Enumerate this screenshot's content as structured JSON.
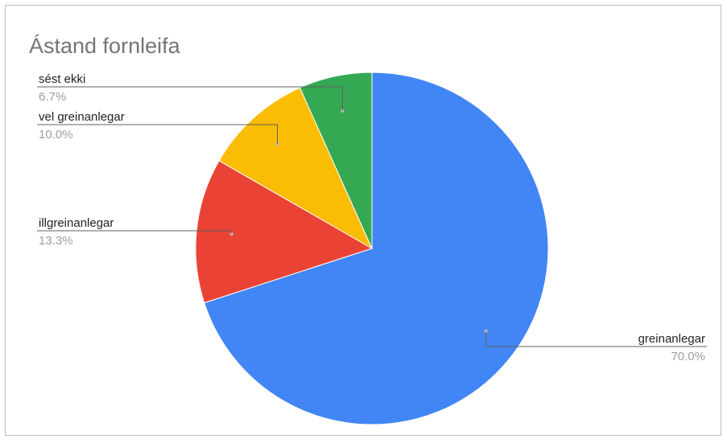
{
  "chart_data": {
    "type": "pie",
    "title": "Ástand fornleifa",
    "categories": [
      "greinanlegar",
      "illgreinanlegar",
      "vel greinanlegar",
      "sést ekki"
    ],
    "values": [
      70.0,
      13.3,
      10.0,
      6.7
    ],
    "value_labels": [
      "70.0%",
      "13.3%",
      "10.0%",
      "6.7%"
    ],
    "colors": [
      "#4285f4",
      "#ea4335",
      "#fbbc04",
      "#34a853"
    ],
    "legend": "none"
  }
}
